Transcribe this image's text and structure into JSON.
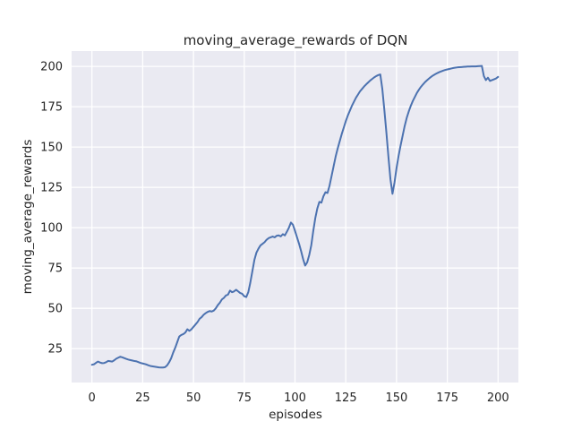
{
  "colors": {
    "figure_background": "#FFFFFF",
    "axes_background": "#EAEAF2",
    "gridline": "#FFFFFF",
    "line": "#4C72B0",
    "text": "#262626"
  },
  "chart_data": {
    "type": "line",
    "title": "moving_average_rewards of DQN",
    "xlabel": "episodes",
    "ylabel": "moving_average_rewards",
    "x_ticks": [
      0,
      25,
      50,
      75,
      100,
      125,
      150,
      175,
      200
    ],
    "y_ticks": [
      25,
      50,
      75,
      100,
      125,
      150,
      175,
      200
    ],
    "xlim": [
      -10,
      210
    ],
    "ylim": [
      4,
      209.5
    ],
    "grid": true,
    "legend_position": "none",
    "series": [
      {
        "name": "moving_average_rewards",
        "x_start": 0,
        "x_step": 1,
        "values": [
          15,
          15.3,
          16.2,
          17,
          16.4,
          16,
          16.1,
          16.6,
          17.4,
          17.2,
          17,
          17.8,
          18.8,
          19.4,
          20,
          19.6,
          19.1,
          18.6,
          18.2,
          17.9,
          17.6,
          17.3,
          17.1,
          16.6,
          16.1,
          15.8,
          15.5,
          15.1,
          14.6,
          14.2,
          14,
          13.8,
          13.6,
          13.4,
          13.3,
          13.3,
          13.5,
          14.6,
          16.5,
          19,
          22.5,
          25.5,
          29,
          32.5,
          33.5,
          34,
          35,
          37,
          36,
          37,
          38.5,
          40,
          41.5,
          43.5,
          44.5,
          46,
          47,
          47.8,
          48.3,
          48,
          48.6,
          50,
          52,
          53.5,
          55.5,
          56.5,
          58,
          58.5,
          61,
          60,
          60.5,
          61.5,
          60.5,
          59.5,
          59,
          57.5,
          57,
          60,
          66,
          73,
          80,
          84.5,
          87,
          89,
          90,
          91,
          92.5,
          93.5,
          94,
          94.5,
          94,
          95,
          95.2,
          94.6,
          96,
          95.2,
          97.5,
          100,
          103.2,
          101.8,
          98,
          94,
          90,
          85.5,
          80.5,
          76.5,
          78.5,
          83,
          89,
          98,
          106,
          112,
          116,
          115.5,
          119.5,
          122,
          121.5,
          126,
          132,
          138,
          144,
          149,
          153.5,
          158,
          162,
          166,
          169.5,
          172.5,
          175.5,
          178,
          180.5,
          182.5,
          184.5,
          186,
          187.5,
          188.8,
          190,
          191.2,
          192.2,
          193.2,
          194,
          194.6,
          195,
          186,
          173,
          159,
          144,
          130,
          121,
          128,
          137,
          144.5,
          151,
          157,
          163,
          168,
          172,
          175.5,
          178.5,
          181,
          183.5,
          185.5,
          187.3,
          188.8,
          190.2,
          191.4,
          192.5,
          193.5,
          194.4,
          195.1,
          195.8,
          196.4,
          196.9,
          197.4,
          197.8,
          198.1,
          198.4,
          198.7,
          199,
          199.2,
          199.4,
          199.5,
          199.6,
          199.7,
          199.8,
          199.9,
          199.9,
          200,
          200,
          200,
          200.1,
          200.2,
          200.3,
          194,
          191.5,
          193,
          191,
          191.5,
          192,
          192.5,
          193.5
        ]
      }
    ]
  }
}
